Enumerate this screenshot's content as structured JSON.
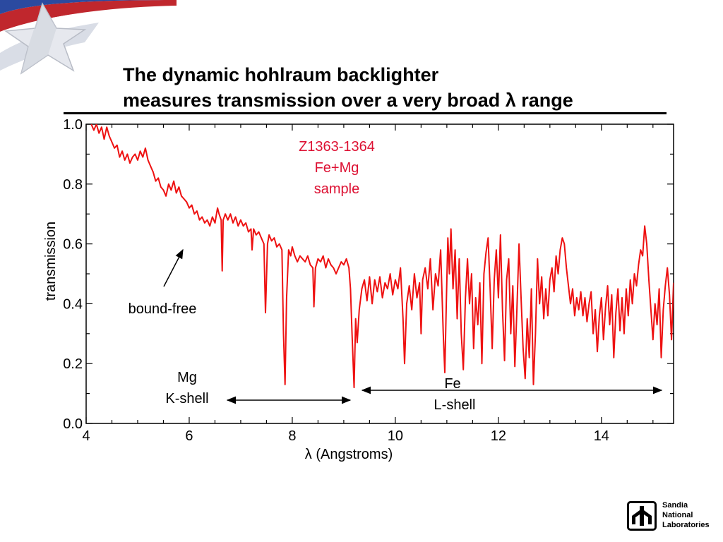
{
  "slide": {
    "title_line1": "The dynamic hohlraum backlighter",
    "title_line2": "measures transmission over a very broad λ range"
  },
  "logo": {
    "line1": "Sandia",
    "line2": "National",
    "line3": "Laboratories"
  },
  "colors": {
    "series": "#ee1111",
    "annotation_red": "#dd1133"
  },
  "chart_data": {
    "type": "line",
    "xlabel": "λ (Angstroms)",
    "ylabel": "transmission",
    "xlim": [
      4.0,
      15.4
    ],
    "ylim": [
      0.0,
      1.0
    ],
    "xticks": [
      {
        "v": 4,
        "label": "4"
      },
      {
        "v": 6,
        "label": "6"
      },
      {
        "v": 8,
        "label": "8"
      },
      {
        "v": 10,
        "label": "10"
      },
      {
        "v": 12,
        "label": "12"
      },
      {
        "v": 14,
        "label": "14"
      }
    ],
    "yticks": [
      {
        "v": 0.0,
        "label": "0.0"
      },
      {
        "v": 0.2,
        "label": "0.2"
      },
      {
        "v": 0.4,
        "label": "0.4"
      },
      {
        "v": 0.6,
        "label": "0.6"
      },
      {
        "v": 0.8,
        "label": "0.8"
      },
      {
        "v": 1.0,
        "label": "1.0"
      }
    ],
    "grid": false,
    "annotations": {
      "sample_line1": "Z1363-1364",
      "sample_line2": "Fe+Mg",
      "sample_line3": "sample",
      "bound_free": "bound-free",
      "mg_line1": "Mg",
      "mg_line2": "K-shell",
      "fe_line1": "Fe",
      "fe_line2": "L-shell"
    },
    "series": [
      {
        "points": [
          [
            4.1,
            1.0
          ],
          [
            4.15,
            0.98
          ],
          [
            4.2,
            1.0
          ],
          [
            4.25,
            0.97
          ],
          [
            4.3,
            0.99
          ],
          [
            4.35,
            0.95
          ],
          [
            4.4,
            0.99
          ],
          [
            4.45,
            0.96
          ],
          [
            4.5,
            0.94
          ],
          [
            4.55,
            0.92
          ],
          [
            4.6,
            0.93
          ],
          [
            4.65,
            0.89
          ],
          [
            4.7,
            0.91
          ],
          [
            4.75,
            0.88
          ],
          [
            4.8,
            0.9
          ],
          [
            4.85,
            0.87
          ],
          [
            4.9,
            0.89
          ],
          [
            4.95,
            0.9
          ],
          [
            5.0,
            0.88
          ],
          [
            5.05,
            0.91
          ],
          [
            5.1,
            0.89
          ],
          [
            5.15,
            0.92
          ],
          [
            5.2,
            0.88
          ],
          [
            5.25,
            0.86
          ],
          [
            5.3,
            0.84
          ],
          [
            5.35,
            0.81
          ],
          [
            5.4,
            0.82
          ],
          [
            5.45,
            0.79
          ],
          [
            5.5,
            0.78
          ],
          [
            5.55,
            0.76
          ],
          [
            5.6,
            0.8
          ],
          [
            5.65,
            0.78
          ],
          [
            5.7,
            0.81
          ],
          [
            5.75,
            0.77
          ],
          [
            5.8,
            0.79
          ],
          [
            5.85,
            0.76
          ],
          [
            5.9,
            0.75
          ],
          [
            5.95,
            0.74
          ],
          [
            6.0,
            0.72
          ],
          [
            6.05,
            0.73
          ],
          [
            6.1,
            0.7
          ],
          [
            6.15,
            0.71
          ],
          [
            6.2,
            0.68
          ],
          [
            6.25,
            0.69
          ],
          [
            6.3,
            0.67
          ],
          [
            6.35,
            0.68
          ],
          [
            6.4,
            0.66
          ],
          [
            6.45,
            0.69
          ],
          [
            6.5,
            0.67
          ],
          [
            6.55,
            0.72
          ],
          [
            6.58,
            0.7
          ],
          [
            6.62,
            0.68
          ],
          [
            6.64,
            0.51
          ],
          [
            6.66,
            0.68
          ],
          [
            6.7,
            0.7
          ],
          [
            6.75,
            0.68
          ],
          [
            6.8,
            0.7
          ],
          [
            6.85,
            0.67
          ],
          [
            6.9,
            0.69
          ],
          [
            6.95,
            0.66
          ],
          [
            7.0,
            0.68
          ],
          [
            7.05,
            0.66
          ],
          [
            7.1,
            0.67
          ],
          [
            7.15,
            0.64
          ],
          [
            7.2,
            0.65
          ],
          [
            7.22,
            0.58
          ],
          [
            7.25,
            0.65
          ],
          [
            7.3,
            0.63
          ],
          [
            7.35,
            0.64
          ],
          [
            7.4,
            0.62
          ],
          [
            7.45,
            0.6
          ],
          [
            7.48,
            0.37
          ],
          [
            7.52,
            0.6
          ],
          [
            7.55,
            0.63
          ],
          [
            7.6,
            0.61
          ],
          [
            7.65,
            0.62
          ],
          [
            7.7,
            0.59
          ],
          [
            7.75,
            0.6
          ],
          [
            7.8,
            0.58
          ],
          [
            7.83,
            0.3
          ],
          [
            7.86,
            0.13
          ],
          [
            7.89,
            0.42
          ],
          [
            7.93,
            0.58
          ],
          [
            7.97,
            0.56
          ],
          [
            8.0,
            0.59
          ],
          [
            8.05,
            0.56
          ],
          [
            8.1,
            0.54
          ],
          [
            8.15,
            0.56
          ],
          [
            8.2,
            0.55
          ],
          [
            8.25,
            0.54
          ],
          [
            8.3,
            0.56
          ],
          [
            8.35,
            0.53
          ],
          [
            8.4,
            0.52
          ],
          [
            8.42,
            0.39
          ],
          [
            8.45,
            0.52
          ],
          [
            8.5,
            0.55
          ],
          [
            8.55,
            0.54
          ],
          [
            8.6,
            0.56
          ],
          [
            8.65,
            0.52
          ],
          [
            8.7,
            0.55
          ],
          [
            8.75,
            0.53
          ],
          [
            8.8,
            0.52
          ],
          [
            8.85,
            0.5
          ],
          [
            8.9,
            0.52
          ],
          [
            8.95,
            0.54
          ],
          [
            9.0,
            0.53
          ],
          [
            9.05,
            0.55
          ],
          [
            9.1,
            0.52
          ],
          [
            9.13,
            0.45
          ],
          [
            9.16,
            0.3
          ],
          [
            9.2,
            0.12
          ],
          [
            9.23,
            0.35
          ],
          [
            9.26,
            0.27
          ],
          [
            9.3,
            0.38
          ],
          [
            9.35,
            0.45
          ],
          [
            9.4,
            0.48
          ],
          [
            9.45,
            0.41
          ],
          [
            9.5,
            0.49
          ],
          [
            9.55,
            0.4
          ],
          [
            9.6,
            0.48
          ],
          [
            9.65,
            0.44
          ],
          [
            9.7,
            0.49
          ],
          [
            9.75,
            0.42
          ],
          [
            9.8,
            0.47
          ],
          [
            9.85,
            0.45
          ],
          [
            9.9,
            0.5
          ],
          [
            9.95,
            0.43
          ],
          [
            10.0,
            0.48
          ],
          [
            10.05,
            0.45
          ],
          [
            10.1,
            0.52
          ],
          [
            10.15,
            0.35
          ],
          [
            10.18,
            0.2
          ],
          [
            10.22,
            0.4
          ],
          [
            10.27,
            0.46
          ],
          [
            10.32,
            0.38
          ],
          [
            10.37,
            0.5
          ],
          [
            10.42,
            0.42
          ],
          [
            10.47,
            0.47
          ],
          [
            10.5,
            0.3
          ],
          [
            10.53,
            0.48
          ],
          [
            10.58,
            0.52
          ],
          [
            10.63,
            0.45
          ],
          [
            10.68,
            0.55
          ],
          [
            10.73,
            0.38
          ],
          [
            10.78,
            0.5
          ],
          [
            10.83,
            0.46
          ],
          [
            10.88,
            0.58
          ],
          [
            10.93,
            0.3
          ],
          [
            10.96,
            0.17
          ],
          [
            10.99,
            0.4
          ],
          [
            11.02,
            0.62
          ],
          [
            11.05,
            0.5
          ],
          [
            11.08,
            0.65
          ],
          [
            11.12,
            0.45
          ],
          [
            11.16,
            0.58
          ],
          [
            11.2,
            0.35
          ],
          [
            11.24,
            0.55
          ],
          [
            11.28,
            0.3
          ],
          [
            11.32,
            0.18
          ],
          [
            11.36,
            0.42
          ],
          [
            11.4,
            0.55
          ],
          [
            11.44,
            0.4
          ],
          [
            11.48,
            0.5
          ],
          [
            11.52,
            0.25
          ],
          [
            11.56,
            0.42
          ],
          [
            11.6,
            0.33
          ],
          [
            11.64,
            0.47
          ],
          [
            11.68,
            0.2
          ],
          [
            11.72,
            0.5
          ],
          [
            11.76,
            0.57
          ],
          [
            11.8,
            0.62
          ],
          [
            11.84,
            0.45
          ],
          [
            11.88,
            0.25
          ],
          [
            11.92,
            0.48
          ],
          [
            11.96,
            0.58
          ],
          [
            12.0,
            0.42
          ],
          [
            12.04,
            0.63
          ],
          [
            12.08,
            0.38
          ],
          [
            12.12,
            0.21
          ],
          [
            12.16,
            0.48
          ],
          [
            12.2,
            0.55
          ],
          [
            12.24,
            0.3
          ],
          [
            12.28,
            0.46
          ],
          [
            12.32,
            0.19
          ],
          [
            12.36,
            0.38
          ],
          [
            12.4,
            0.6
          ],
          [
            12.44,
            0.42
          ],
          [
            12.48,
            0.25
          ],
          [
            12.52,
            0.15
          ],
          [
            12.56,
            0.35
          ],
          [
            12.6,
            0.22
          ],
          [
            12.64,
            0.45
          ],
          [
            12.68,
            0.13
          ],
          [
            12.72,
            0.3
          ],
          [
            12.76,
            0.55
          ],
          [
            12.8,
            0.4
          ],
          [
            12.84,
            0.49
          ],
          [
            12.88,
            0.35
          ],
          [
            12.92,
            0.45
          ],
          [
            12.96,
            0.36
          ],
          [
            13.0,
            0.48
          ],
          [
            13.04,
            0.52
          ],
          [
            13.08,
            0.44
          ],
          [
            13.12,
            0.56
          ],
          [
            13.16,
            0.5
          ],
          [
            13.2,
            0.58
          ],
          [
            13.24,
            0.62
          ],
          [
            13.28,
            0.6
          ],
          [
            13.32,
            0.52
          ],
          [
            13.36,
            0.46
          ],
          [
            13.4,
            0.4
          ],
          [
            13.44,
            0.45
          ],
          [
            13.48,
            0.36
          ],
          [
            13.52,
            0.42
          ],
          [
            13.56,
            0.38
          ],
          [
            13.6,
            0.44
          ],
          [
            13.64,
            0.36
          ],
          [
            13.68,
            0.42
          ],
          [
            13.72,
            0.34
          ],
          [
            13.76,
            0.4
          ],
          [
            13.8,
            0.44
          ],
          [
            13.84,
            0.3
          ],
          [
            13.88,
            0.38
          ],
          [
            13.92,
            0.24
          ],
          [
            13.96,
            0.36
          ],
          [
            14.0,
            0.42
          ],
          [
            14.04,
            0.28
          ],
          [
            14.08,
            0.39
          ],
          [
            14.12,
            0.46
          ],
          [
            14.16,
            0.33
          ],
          [
            14.2,
            0.43
          ],
          [
            14.24,
            0.22
          ],
          [
            14.28,
            0.37
          ],
          [
            14.32,
            0.45
          ],
          [
            14.36,
            0.31
          ],
          [
            14.4,
            0.42
          ],
          [
            14.44,
            0.3
          ],
          [
            14.48,
            0.45
          ],
          [
            14.52,
            0.36
          ],
          [
            14.56,
            0.48
          ],
          [
            14.6,
            0.4
          ],
          [
            14.64,
            0.5
          ],
          [
            14.68,
            0.46
          ],
          [
            14.72,
            0.53
          ],
          [
            14.76,
            0.58
          ],
          [
            14.8,
            0.56
          ],
          [
            14.84,
            0.66
          ],
          [
            14.88,
            0.6
          ],
          [
            14.92,
            0.48
          ],
          [
            14.96,
            0.38
          ],
          [
            15.0,
            0.28
          ],
          [
            15.04,
            0.4
          ],
          [
            15.08,
            0.33
          ],
          [
            15.12,
            0.45
          ],
          [
            15.16,
            0.22
          ],
          [
            15.2,
            0.38
          ],
          [
            15.24,
            0.46
          ],
          [
            15.28,
            0.52
          ],
          [
            15.32,
            0.43
          ],
          [
            15.36,
            0.28
          ],
          [
            15.4,
            0.47
          ]
        ]
      }
    ]
  }
}
